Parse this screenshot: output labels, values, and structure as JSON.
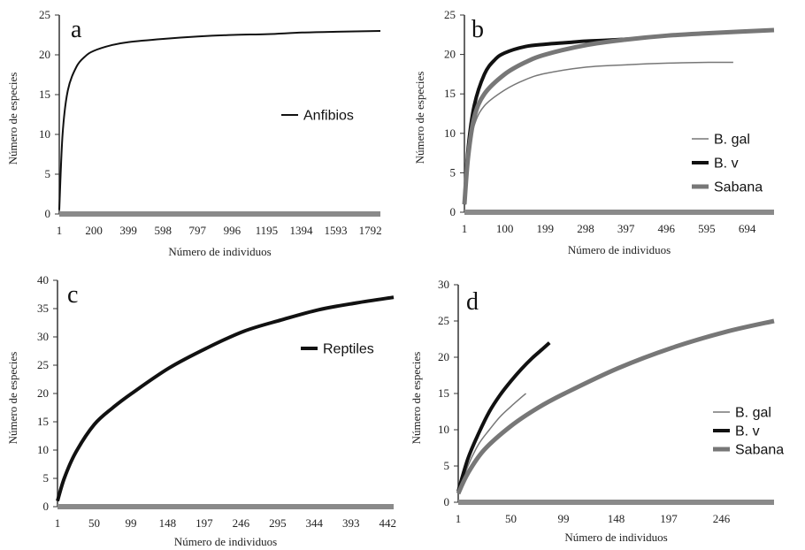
{
  "chart_data": [
    {
      "type": "line",
      "panel": "a",
      "xlabel": "Número de individuos",
      "ylabel": "Número de especies",
      "ylim": [
        0,
        25
      ],
      "yticks": [
        0,
        5,
        10,
        15,
        20,
        25
      ],
      "xlim": [
        1,
        1850
      ],
      "xticks": [
        1,
        200,
        399,
        598,
        797,
        996,
        1195,
        1394,
        1593,
        1792
      ],
      "grid": false,
      "legend_position": "right",
      "series": [
        {
          "name": "Anfibios",
          "color": "#111111",
          "width": 2,
          "x": [
            1,
            20,
            50,
            100,
            150,
            200,
            300,
            400,
            600,
            800,
            1000,
            1200,
            1400,
            1600,
            1850
          ],
          "y": [
            0.5,
            10,
            15.5,
            18.5,
            19.8,
            20.5,
            21.2,
            21.6,
            22.0,
            22.3,
            22.5,
            22.6,
            22.8,
            22.9,
            23.0
          ]
        }
      ]
    },
    {
      "type": "line",
      "panel": "b",
      "xlabel": "Número de individuos",
      "ylabel": "Número de especies",
      "ylim": [
        0,
        25
      ],
      "yticks": [
        0,
        5,
        10,
        15,
        20,
        25
      ],
      "xlim": [
        1,
        760
      ],
      "xticks": [
        1,
        100,
        199,
        298,
        397,
        496,
        595,
        694
      ],
      "grid": false,
      "legend_position": "right",
      "series": [
        {
          "name": "B. gal",
          "color": "#777777",
          "width": 1.5,
          "x": [
            1,
            10,
            25,
            50,
            100,
            150,
            200,
            300,
            400,
            500,
            600,
            660
          ],
          "y": [
            1,
            7,
            11,
            13.5,
            15.5,
            16.8,
            17.6,
            18.4,
            18.7,
            18.9,
            19.0,
            19.0
          ]
        },
        {
          "name": "B. v",
          "color": "#111111",
          "width": 4,
          "x": [
            1,
            10,
            25,
            50,
            75,
            100,
            150,
            200,
            250,
            300,
            350,
            420
          ],
          "y": [
            1,
            8,
            13.5,
            17.5,
            19.3,
            20.2,
            21.0,
            21.3,
            21.5,
            21.7,
            21.8,
            22.0
          ]
        },
        {
          "name": "Sabana",
          "color": "#777777",
          "width": 5,
          "x": [
            1,
            10,
            25,
            50,
            100,
            150,
            200,
            300,
            400,
            500,
            600,
            760
          ],
          "y": [
            1,
            7,
            12,
            15,
            17.5,
            19,
            20,
            21.2,
            21.9,
            22.4,
            22.7,
            23.1
          ]
        }
      ]
    },
    {
      "type": "line",
      "panel": "c",
      "xlabel": "Número de individuos",
      "ylabel": "Número de especies",
      "ylim": [
        0,
        40
      ],
      "yticks": [
        0,
        5,
        10,
        15,
        20,
        25,
        30,
        35,
        40
      ],
      "xlim": [
        1,
        450
      ],
      "xticks": [
        1,
        50,
        99,
        148,
        197,
        246,
        295,
        344,
        393,
        442
      ],
      "grid": false,
      "legend_position": "right",
      "series": [
        {
          "name": "Reptiles",
          "color": "#111111",
          "width": 4,
          "x": [
            1,
            10,
            25,
            50,
            75,
            100,
            150,
            200,
            250,
            300,
            350,
            400,
            450
          ],
          "y": [
            1,
            5,
            9.5,
            14.5,
            17.5,
            20,
            24.5,
            28,
            31,
            33,
            34.8,
            36,
            37
          ]
        }
      ]
    },
    {
      "type": "line",
      "panel": "d",
      "xlabel": "Número de individuos",
      "ylabel": "Número de especies",
      "ylim": [
        0,
        30
      ],
      "yticks": [
        0,
        5,
        10,
        15,
        20,
        25,
        30
      ],
      "xlim": [
        1,
        295
      ],
      "xticks": [
        1,
        50,
        99,
        148,
        197,
        246
      ],
      "grid": false,
      "legend_position": "right",
      "series": [
        {
          "name": "B. gal",
          "color": "#777777",
          "width": 1.5,
          "x": [
            1,
            10,
            20,
            30,
            40,
            50,
            60,
            64
          ],
          "y": [
            1.2,
            5,
            8,
            10,
            11.8,
            13.2,
            14.5,
            15
          ]
        },
        {
          "name": "B. v",
          "color": "#111111",
          "width": 4,
          "x": [
            1,
            10,
            20,
            30,
            40,
            50,
            60,
            70,
            80,
            86
          ],
          "y": [
            1.5,
            6,
            9.5,
            12.5,
            14.8,
            16.7,
            18.4,
            19.9,
            21.2,
            22
          ]
        },
        {
          "name": "Sabana",
          "color": "#777777",
          "width": 5,
          "x": [
            1,
            10,
            25,
            50,
            75,
            100,
            150,
            200,
            250,
            295
          ],
          "y": [
            1.2,
            4,
            7.2,
            10.5,
            13,
            15,
            18.5,
            21.3,
            23.5,
            25
          ]
        }
      ]
    }
  ]
}
